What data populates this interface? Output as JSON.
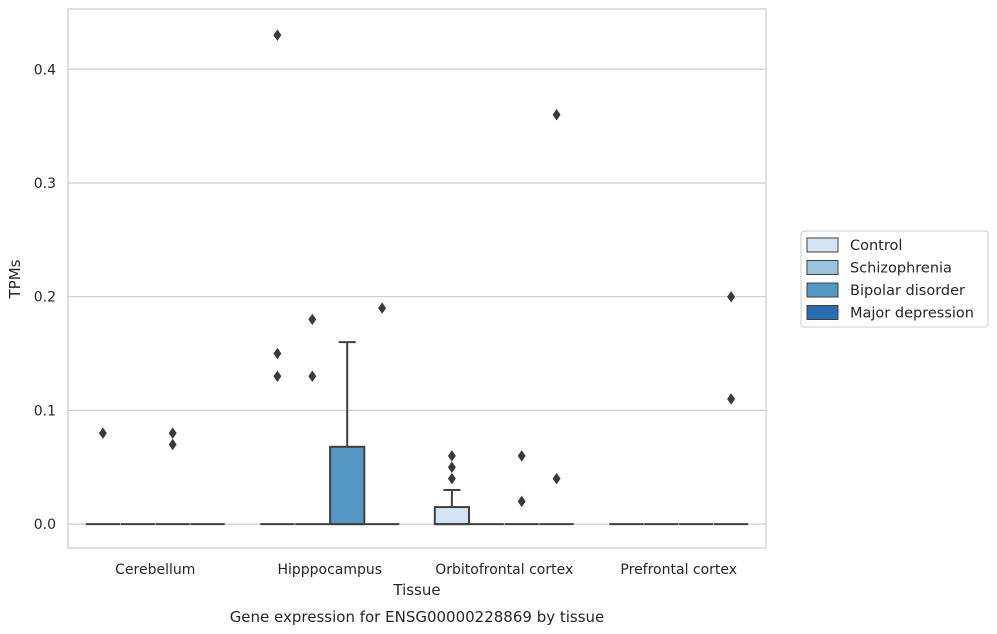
{
  "chart_data": {
    "type": "box",
    "title": "Gene expression for ENSG00000228869 by tissue",
    "xlabel": "Tissue",
    "ylabel": "TPMs",
    "ylim": [
      -0.021,
      0.453
    ],
    "yticks": [
      0.0,
      0.1,
      0.2,
      0.3,
      0.4
    ],
    "ytick_labels": [
      "0.0",
      "0.1",
      "0.2",
      "0.3",
      "0.4"
    ],
    "grid": true,
    "categories": [
      "Cerebellum",
      "Hipppocampus",
      "Orbitofrontal cortex",
      "Prefrontal cortex"
    ],
    "legend": {
      "placement": "right",
      "entries": [
        "Control",
        "Schizophrenia",
        "Bipolar disorder",
        "Major depression"
      ]
    },
    "colors": {
      "Control": "#d4e4f3",
      "Schizophrenia": "#9cc3dd",
      "Bipolar disorder": "#5598c6",
      "Major depression": "#2a6daf",
      "line": "#404040",
      "grid": "#cccccc",
      "frame": "#cccccc"
    },
    "boxes": [
      {
        "category": "Cerebellum",
        "series": "Control",
        "q1": 0,
        "median": 0,
        "q3": 0,
        "whislo": 0,
        "whishi": 0,
        "fliers": [
          0.08
        ]
      },
      {
        "category": "Cerebellum",
        "series": "Schizophrenia",
        "q1": 0,
        "median": 0,
        "q3": 0,
        "whislo": 0,
        "whishi": 0,
        "fliers": []
      },
      {
        "category": "Cerebellum",
        "series": "Bipolar disorder",
        "q1": 0,
        "median": 0,
        "q3": 0,
        "whislo": 0,
        "whishi": 0,
        "fliers": [
          0.08,
          0.07
        ]
      },
      {
        "category": "Cerebellum",
        "series": "Major depression",
        "q1": 0,
        "median": 0,
        "q3": 0,
        "whislo": 0,
        "whishi": 0,
        "fliers": []
      },
      {
        "category": "Hipppocampus",
        "series": "Control",
        "q1": 0,
        "median": 0,
        "q3": 0,
        "whislo": 0,
        "whishi": 0,
        "fliers": [
          0.43,
          0.15,
          0.13
        ]
      },
      {
        "category": "Hipppocampus",
        "series": "Schizophrenia",
        "q1": 0,
        "median": 0,
        "q3": 0,
        "whislo": 0,
        "whishi": 0,
        "fliers": [
          0.18,
          0.13
        ]
      },
      {
        "category": "Hipppocampus",
        "series": "Bipolar disorder",
        "q1": 0,
        "median": 0,
        "q3": 0.068,
        "whislo": 0,
        "whishi": 0.16,
        "fliers": []
      },
      {
        "category": "Hipppocampus",
        "series": "Major depression",
        "q1": 0,
        "median": 0,
        "q3": 0,
        "whislo": 0,
        "whishi": 0,
        "fliers": [
          0.19
        ]
      },
      {
        "category": "Orbitofrontal cortex",
        "series": "Control",
        "q1": 0,
        "median": 0,
        "q3": 0.015,
        "whislo": 0,
        "whishi": 0.03,
        "fliers": [
          0.06,
          0.05,
          0.04
        ]
      },
      {
        "category": "Orbitofrontal cortex",
        "series": "Schizophrenia",
        "q1": 0,
        "median": 0,
        "q3": 0,
        "whislo": 0,
        "whishi": 0,
        "fliers": []
      },
      {
        "category": "Orbitofrontal cortex",
        "series": "Bipolar disorder",
        "q1": 0,
        "median": 0,
        "q3": 0,
        "whislo": 0,
        "whishi": 0,
        "fliers": [
          0.06,
          0.02
        ]
      },
      {
        "category": "Orbitofrontal cortex",
        "series": "Major depression",
        "q1": 0,
        "median": 0,
        "q3": 0,
        "whislo": 0,
        "whishi": 0,
        "fliers": [
          0.36,
          0.04
        ]
      },
      {
        "category": "Prefrontal cortex",
        "series": "Control",
        "q1": 0,
        "median": 0,
        "q3": 0,
        "whislo": 0,
        "whishi": 0,
        "fliers": []
      },
      {
        "category": "Prefrontal cortex",
        "series": "Schizophrenia",
        "q1": 0,
        "median": 0,
        "q3": 0,
        "whislo": 0,
        "whishi": 0,
        "fliers": []
      },
      {
        "category": "Prefrontal cortex",
        "series": "Bipolar disorder",
        "q1": 0,
        "median": 0,
        "q3": 0,
        "whislo": 0,
        "whishi": 0,
        "fliers": []
      },
      {
        "category": "Prefrontal cortex",
        "series": "Major depression",
        "q1": 0,
        "median": 0,
        "q3": 0,
        "whislo": 0,
        "whishi": 0,
        "fliers": [
          0.2,
          0.11
        ]
      }
    ]
  }
}
